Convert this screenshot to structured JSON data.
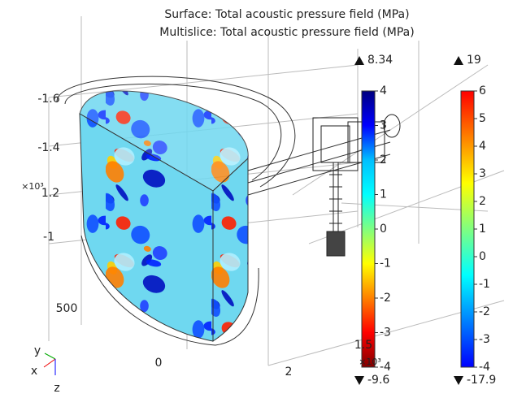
{
  "chart_data": {
    "type": "surface3d",
    "title": "Surface: Total acoustic pressure field (MPa)",
    "subtitle": "Multislice: Total acoustic pressure field (MPa)",
    "colorbars": [
      {
        "max": 8.34,
        "min": -9.6,
        "lim": [
          -4,
          4
        ],
        "ticks": [
          4,
          3,
          2,
          1,
          0,
          -1,
          -2,
          -3,
          -4
        ],
        "colors": [
          "#000080",
          "#0000ff",
          "#00bfff",
          "#00ffff",
          "#80ff80",
          "#ffff00",
          "#ff8000",
          "#ff0000",
          "#800000"
        ]
      },
      {
        "max": 19,
        "min": -17.9,
        "lim": [
          -4,
          6
        ],
        "ticks": [
          6,
          5,
          4,
          3,
          2,
          1,
          0,
          -1,
          -2,
          -3,
          -4
        ],
        "colors": [
          "#ff0000",
          "#ff8000",
          "#ffff00",
          "#80ff80",
          "#00ffff",
          "#0080ff",
          "#0000ff"
        ]
      }
    ],
    "scene_labels": [
      "-1.6",
      "-1.4",
      "1.2",
      "-1",
      "500",
      "0",
      "2",
      "1.5"
    ],
    "scale_labels": [
      "×10³",
      "×10³"
    ],
    "triad": [
      "x",
      "y",
      "z"
    ]
  }
}
